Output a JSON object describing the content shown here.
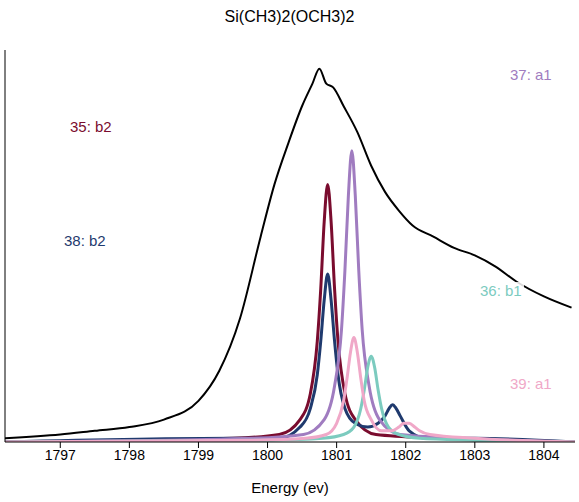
{
  "chart_data": {
    "type": "line",
    "title": "Si(CH3)2(OCH3)2",
    "x_label": "Energy (ev)",
    "xlim": [
      1796.2,
      1804.45
    ],
    "xticks": [
      1797,
      1798,
      1799,
      1800,
      1801,
      1802,
      1803,
      1804
    ],
    "ylim": [
      0,
      1.05
    ],
    "tick_labels": "x",
    "grid": false,
    "series": [
      {
        "color": "#000000",
        "x": [
          1796.2,
          1797,
          1797.5,
          1798,
          1798.5,
          1799,
          1799.3,
          1799.6,
          1799.9,
          1800.1,
          1800.3,
          1800.5,
          1800.65,
          1800.75,
          1800.85,
          1800.95,
          1801.1,
          1801.3,
          1801.5,
          1801.7,
          1801.9,
          1802.1,
          1802.4,
          1802.7,
          1803.0,
          1803.3,
          1803.6,
          1804.0,
          1804.4
        ],
        "values": [
          0.01,
          0.02,
          0.03,
          0.04,
          0.06,
          0.11,
          0.19,
          0.33,
          0.55,
          0.69,
          0.8,
          0.9,
          0.96,
          1.0,
          0.96,
          0.95,
          0.9,
          0.83,
          0.74,
          0.67,
          0.62,
          0.58,
          0.55,
          0.52,
          0.5,
          0.47,
          0.43,
          0.39,
          0.36
        ]
      },
      {
        "name": "35: b2",
        "color": "#7a0c2e",
        "x": [
          1796.2,
          1799.5,
          1800.17,
          1800.47,
          1800.62,
          1800.72,
          1800.77,
          1800.82,
          1800.87,
          1800.92,
          1800.97,
          1801.02,
          1801.12,
          1801.27,
          1801.57,
          1802.5,
          1804.45
        ],
        "values": [
          0,
          0.01,
          0.02,
          0.06,
          0.13,
          0.27,
          0.41,
          0.59,
          0.69,
          0.59,
          0.41,
          0.27,
          0.13,
          0.06,
          0.02,
          0.01,
          0
        ]
      },
      {
        "name": "38: b2",
        "color": "#1f3a6e",
        "x": [
          1796.2,
          1799.5,
          1800.17,
          1800.47,
          1800.62,
          1800.72,
          1800.77,
          1800.82,
          1800.87,
          1800.92,
          1800.97,
          1801.02,
          1801.12,
          1801.27,
          1801.45,
          1801.6,
          1801.7,
          1801.76,
          1801.81,
          1801.86,
          1801.92,
          1802.05,
          1802.3,
          1803,
          1804.45
        ],
        "values": [
          0,
          0.01,
          0.01,
          0.04,
          0.09,
          0.18,
          0.27,
          0.38,
          0.45,
          0.38,
          0.27,
          0.18,
          0.09,
          0.05,
          0.04,
          0.05,
          0.07,
          0.09,
          0.1,
          0.09,
          0.07,
          0.03,
          0.01,
          0.01,
          0
        ]
      },
      {
        "name": "37: a1",
        "color": "#a07cc0",
        "x": [
          1796.2,
          1799.8,
          1800.52,
          1800.82,
          1800.97,
          1801.07,
          1801.12,
          1801.17,
          1801.22,
          1801.27,
          1801.32,
          1801.37,
          1801.47,
          1801.62,
          1801.92,
          1802.8,
          1804.45
        ],
        "values": [
          0,
          0.01,
          0.02,
          0.06,
          0.15,
          0.3,
          0.46,
          0.66,
          0.78,
          0.66,
          0.46,
          0.3,
          0.15,
          0.06,
          0.02,
          0.01,
          0
        ]
      },
      {
        "name": "36: b1",
        "color": "#7ccbbf",
        "x": [
          1796.2,
          1800,
          1800.8,
          1801.1,
          1801.25,
          1801.35,
          1801.4,
          1801.45,
          1801.5,
          1801.55,
          1801.6,
          1801.65,
          1801.75,
          1801.9,
          1802.2,
          1803,
          1804.45
        ],
        "values": [
          0,
          0.005,
          0.01,
          0.02,
          0.04,
          0.09,
          0.14,
          0.2,
          0.23,
          0.2,
          0.14,
          0.09,
          0.04,
          0.02,
          0.01,
          0.005,
          0
        ]
      },
      {
        "name": "39: a1",
        "color": "#f0a8c8",
        "x": [
          1796.2,
          1799.8,
          1800.55,
          1800.85,
          1801.0,
          1801.1,
          1801.15,
          1801.2,
          1801.25,
          1801.3,
          1801.35,
          1801.4,
          1801.5,
          1801.65,
          1801.8,
          1801.9,
          1801.97,
          1802.05,
          1802.13,
          1802.2,
          1802.35,
          1803,
          1804.45
        ],
        "values": [
          0,
          0.005,
          0.01,
          0.02,
          0.05,
          0.11,
          0.17,
          0.24,
          0.28,
          0.24,
          0.17,
          0.11,
          0.06,
          0.03,
          0.03,
          0.04,
          0.05,
          0.05,
          0.04,
          0.03,
          0.02,
          0.01,
          0
        ]
      }
    ]
  }
}
